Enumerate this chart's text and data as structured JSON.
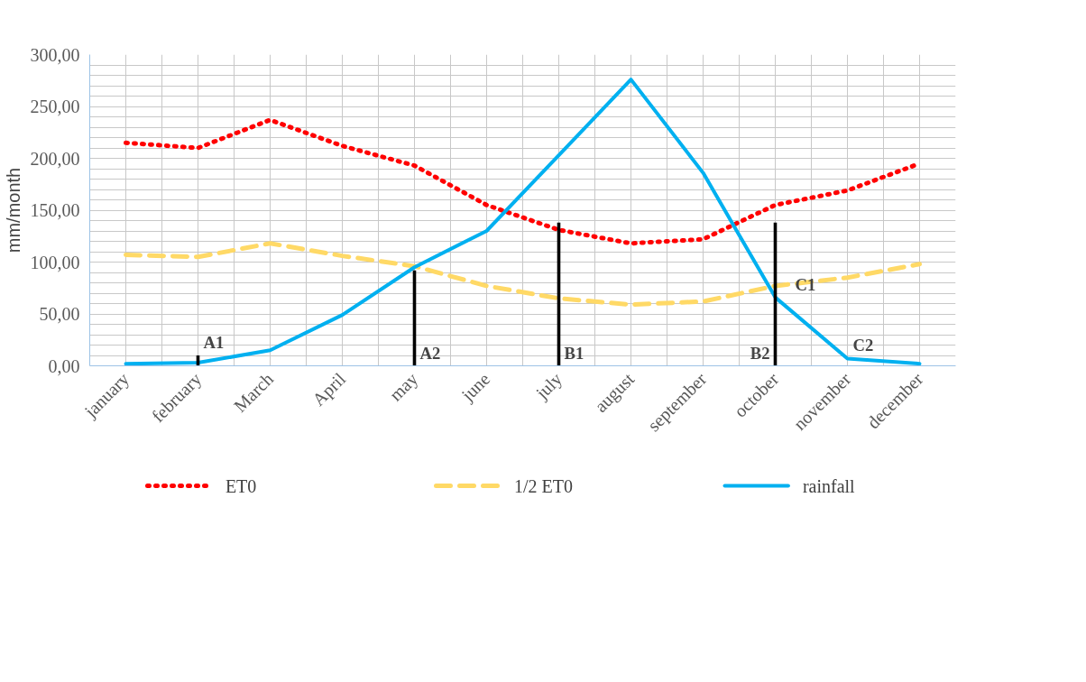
{
  "chart_data": {
    "type": "line",
    "ylabel": "mm/month",
    "categories": [
      "january",
      "february",
      "March",
      "April",
      "may",
      "june",
      "july",
      "august",
      "september",
      "october",
      "november",
      "december"
    ],
    "series": [
      {
        "name": "ET0",
        "color": "#ff0000",
        "line_style": "dotted",
        "values": [
          215,
          210,
          237,
          212,
          193,
          155,
          131,
          118,
          122,
          155,
          169,
          195
        ]
      },
      {
        "name": "1/2 ET0",
        "color": "#ffd966",
        "line_style": "dashed",
        "values": [
          107,
          105,
          118,
          106,
          96,
          77,
          65,
          59,
          62,
          77,
          85,
          98
        ]
      },
      {
        "name": "rainfall",
        "color": "#00b0f0",
        "line_style": "solid",
        "values": [
          2,
          3,
          15,
          49,
          95,
          130,
          203,
          276,
          186,
          66,
          7,
          2
        ]
      },
      {
        "type": "bar",
        "color": "#000000",
        "values": [
          null,
          10,
          null,
          null,
          92,
          null,
          138,
          null,
          null,
          138,
          null,
          null
        ]
      }
    ],
    "annotations": [
      {
        "text": "A1",
        "x": "february",
        "y": 10
      },
      {
        "text": "A2",
        "x": "may",
        "y": 0
      },
      {
        "text": "B1",
        "x": "july",
        "y": 0
      },
      {
        "text": "B2",
        "x": "october",
        "y": 0
      },
      {
        "text": "C1",
        "x": "october",
        "y": 66
      },
      {
        "text": "C2",
        "x": "november",
        "y": 7
      }
    ],
    "ylim": [
      0,
      300
    ],
    "yticks": [
      {
        "value": 0,
        "label": "0,00"
      },
      {
        "value": 10,
        "label": null
      },
      {
        "value": 20,
        "label": null
      },
      {
        "value": 30,
        "label": null
      },
      {
        "value": 40,
        "label": null
      },
      {
        "value": 50,
        "label": "50,00"
      },
      {
        "value": 60,
        "label": null
      },
      {
        "value": 70,
        "label": null
      },
      {
        "value": 80,
        "label": null
      },
      {
        "value": 90,
        "label": null
      },
      {
        "value": 100,
        "label": "100,00"
      },
      {
        "value": 110,
        "label": null
      },
      {
        "value": 120,
        "label": null
      },
      {
        "value": 130,
        "label": null
      },
      {
        "value": 140,
        "label": null
      },
      {
        "value": 150,
        "label": "150,00"
      },
      {
        "value": 160,
        "label": null
      },
      {
        "value": 170,
        "label": null
      },
      {
        "value": 180,
        "label": null
      },
      {
        "value": 190,
        "label": null
      },
      {
        "value": 200,
        "label": "200,00"
      },
      {
        "value": 210,
        "label": null
      },
      {
        "value": 220,
        "label": null
      },
      {
        "value": 230,
        "label": null
      },
      {
        "value": 240,
        "label": null
      },
      {
        "value": 250,
        "label": "250,00"
      },
      {
        "value": 260,
        "label": null
      },
      {
        "value": 270,
        "label": null
      },
      {
        "value": 280,
        "label": null
      },
      {
        "value": 290,
        "label": null
      },
      {
        "value": 300,
        "label": "300,00"
      }
    ],
    "grid": true,
    "legend": "bottom",
    "marker": "none"
  }
}
